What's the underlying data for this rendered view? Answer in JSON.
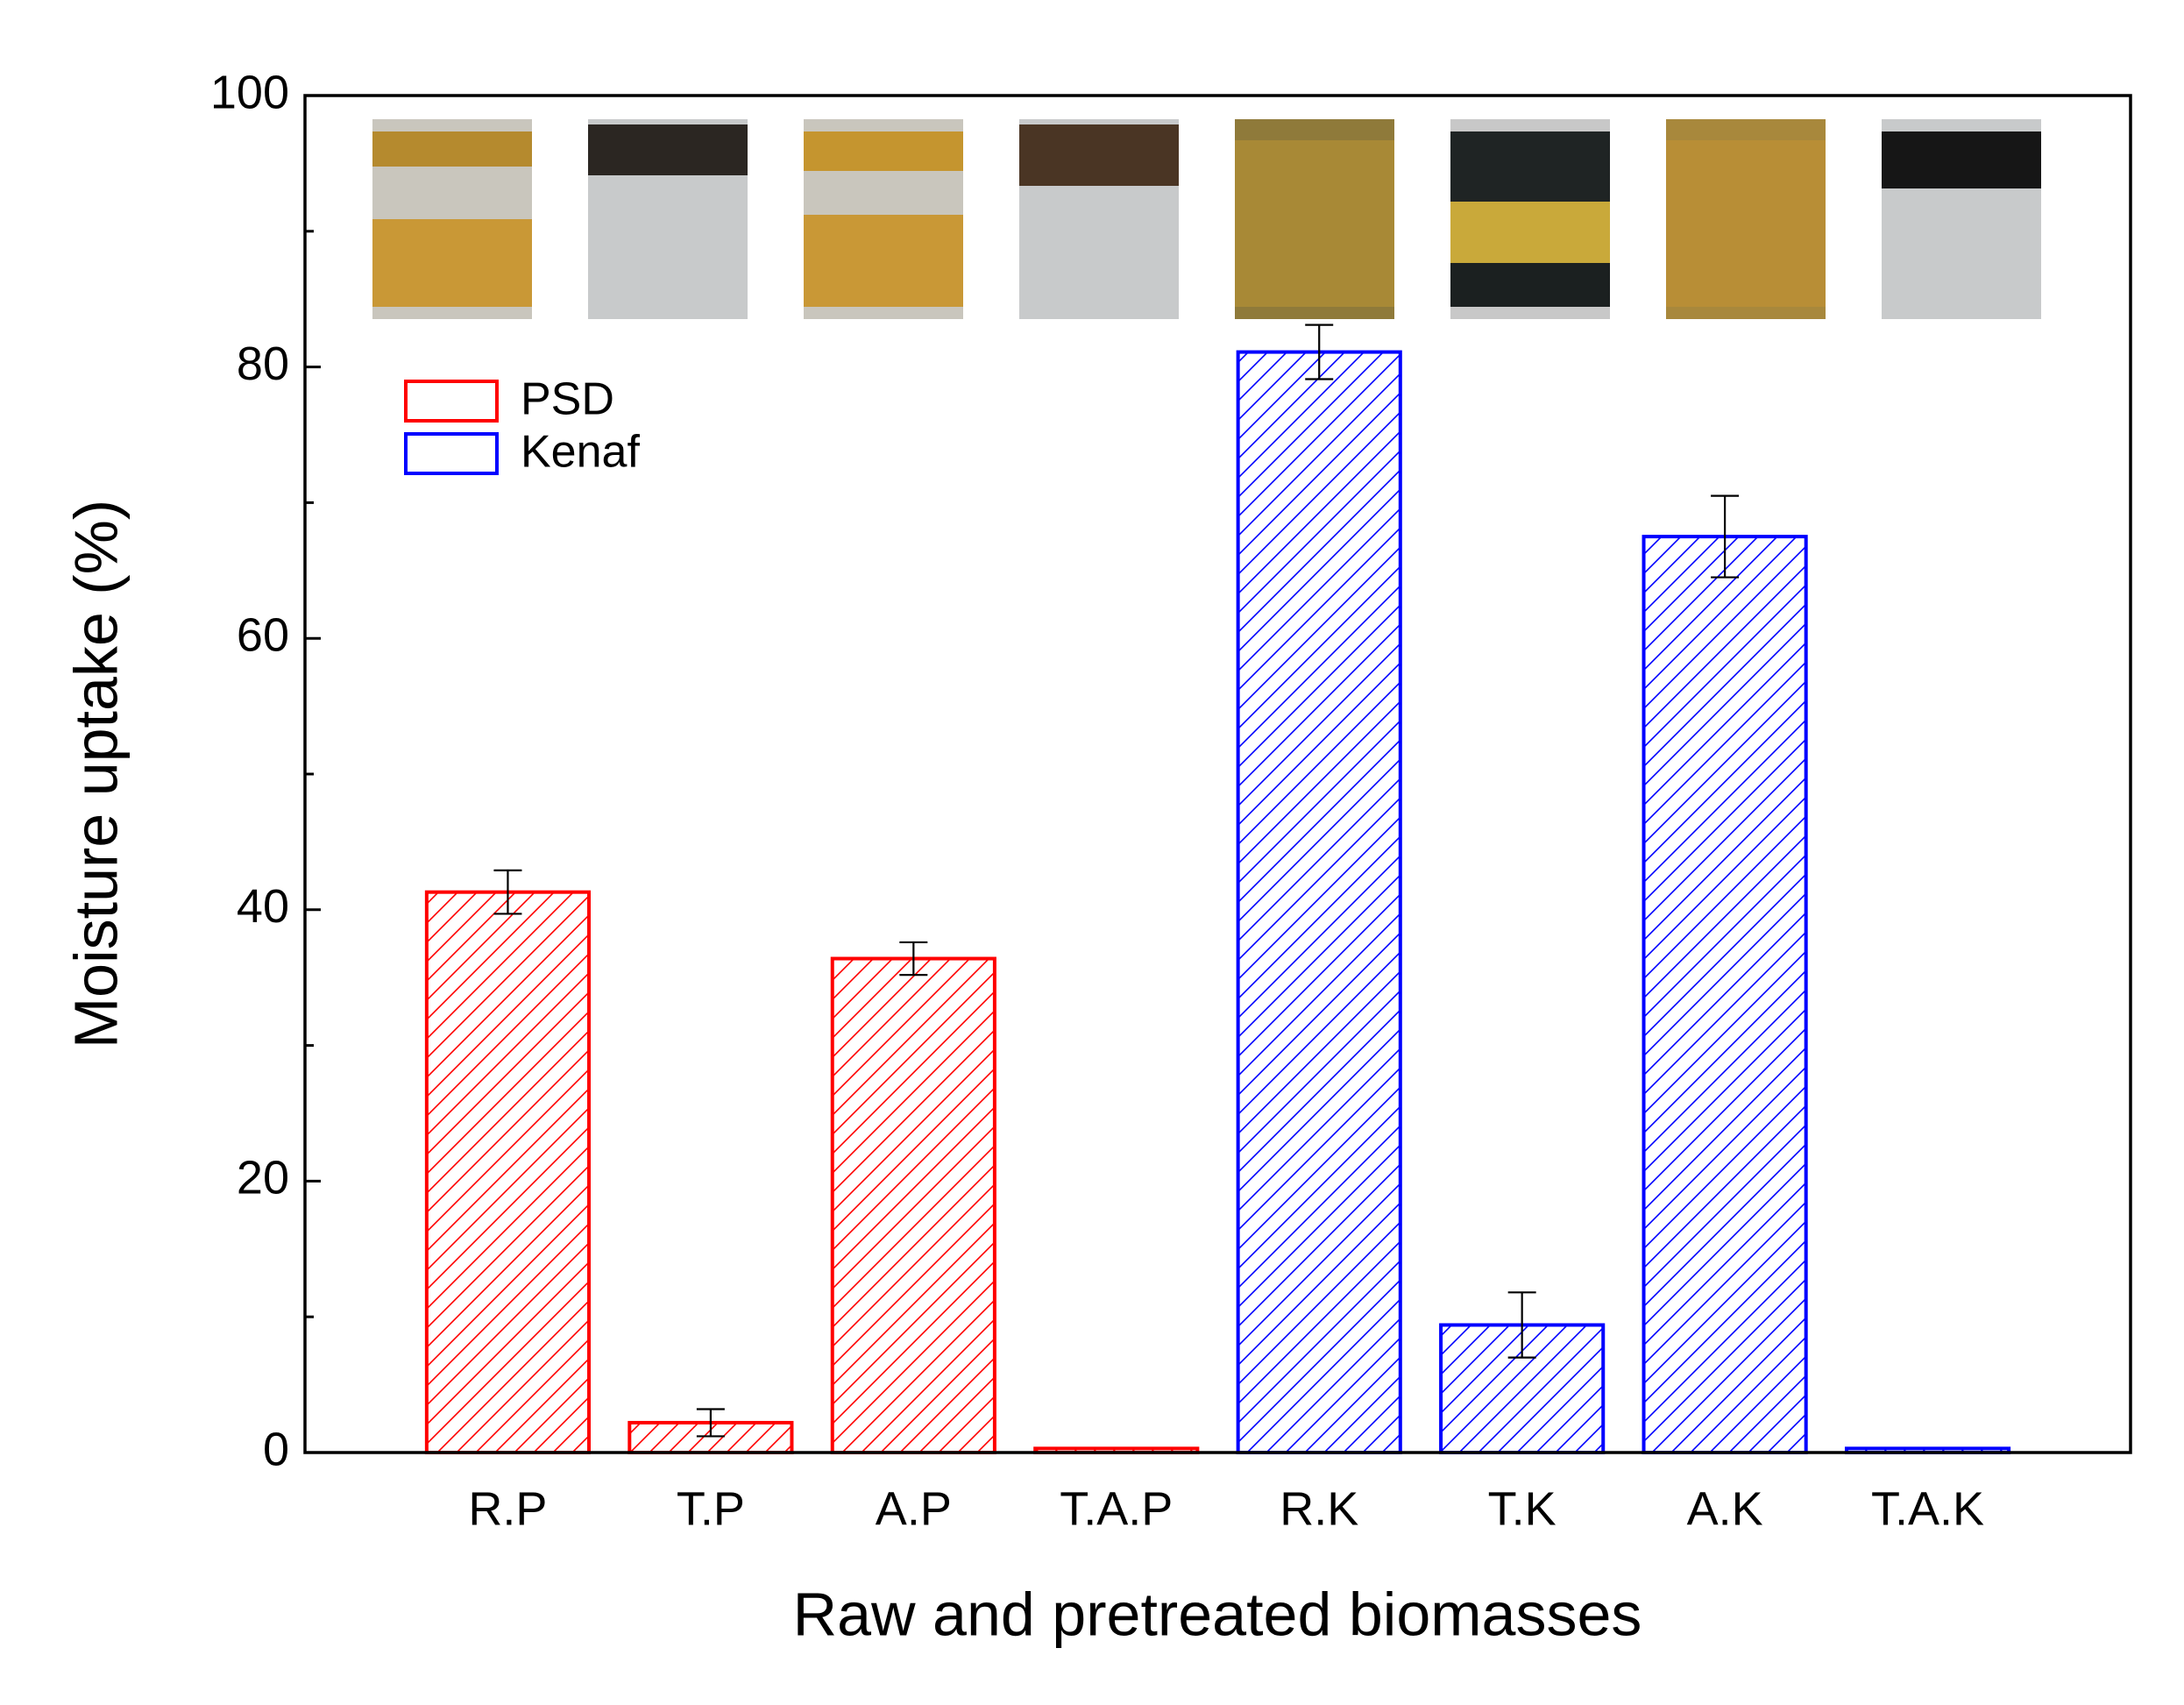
{
  "chart_data": {
    "type": "bar",
    "x_label": "Raw and pretreated biomasses",
    "y_label": "Moisture uptake (%)",
    "categories": [
      "R.P",
      "T.P",
      "A.P",
      "T.A.P",
      "R.K",
      "T.K",
      "A.K",
      "T.A.K"
    ],
    "series": [
      {
        "name": "PSD",
        "color": "#ff0000",
        "values": [
          41.3,
          2.2,
          36.4,
          0.3,
          null,
          null,
          null,
          null
        ],
        "errors": [
          1.6,
          1.0,
          1.2,
          null,
          null,
          null,
          null,
          null
        ]
      },
      {
        "name": "Kenaf",
        "color": "#0000ff",
        "values": [
          null,
          null,
          null,
          null,
          81.1,
          9.4,
          67.5,
          0.3
        ],
        "errors": [
          null,
          null,
          null,
          null,
          2.0,
          2.4,
          3.0,
          null
        ]
      }
    ],
    "ylim": [
      0,
      100
    ],
    "yticks": [
      0,
      20,
      40,
      60,
      80,
      100
    ],
    "yminor_ticks": [
      10,
      30,
      50,
      70,
      90
    ],
    "hatch": true,
    "legend": "upper left"
  }
}
